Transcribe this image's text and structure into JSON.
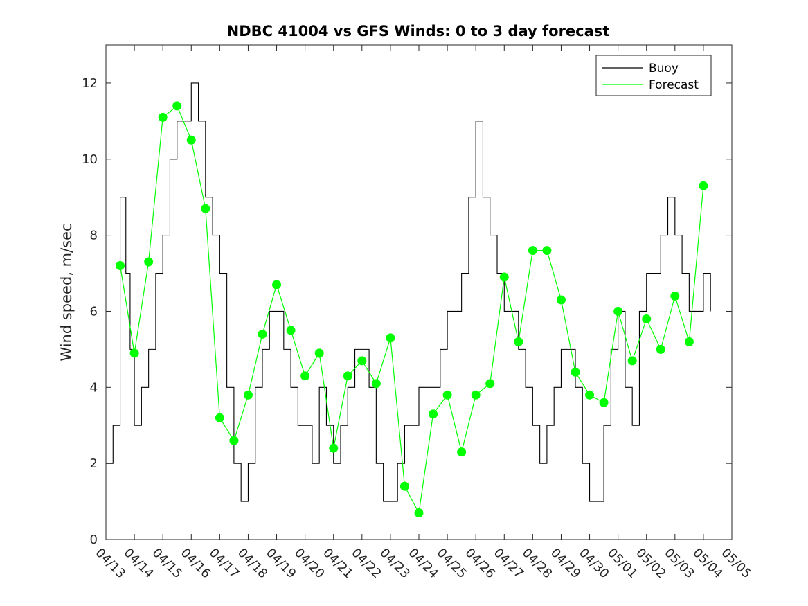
{
  "chart_data": {
    "type": "line",
    "title": "NDBC 41004 vs GFS Winds: 0 to 3 day forecast",
    "xlabel": "",
    "ylabel": "Wind speed, m/sec",
    "x_tick_labels": [
      "04/13",
      "04/14",
      "04/15",
      "04/16",
      "04/17",
      "04/18",
      "04/19",
      "04/20",
      "04/21",
      "04/22",
      "04/23",
      "04/24",
      "04/25",
      "04/26",
      "04/27",
      "04/28",
      "04/29",
      "04/30",
      "05/01",
      "05/02",
      "05/03",
      "05/04",
      "05/05"
    ],
    "y_tick_labels": [
      "0",
      "2",
      "4",
      "6",
      "8",
      "10",
      "12"
    ],
    "xlim_days": [
      0,
      22
    ],
    "ylim": [
      0,
      13
    ],
    "grid": false,
    "legend_position": "top-right",
    "colors": {
      "buoy": "#000000",
      "forecast": "#00ff00",
      "markers": "#00ff00"
    },
    "series": [
      {
        "name": "Buoy",
        "x": [
          0,
          0.25,
          0.5,
          0.7,
          0.85,
          1.0,
          1.25,
          1.5,
          1.75,
          2.0,
          2.25,
          2.5,
          2.75,
          3.0,
          3.25,
          3.5,
          3.75,
          4.0,
          4.25,
          4.5,
          4.75,
          5.0,
          5.25,
          5.5,
          5.75,
          6.0,
          6.25,
          6.5,
          6.75,
          7.0,
          7.25,
          7.5,
          7.75,
          8.0,
          8.25,
          8.5,
          8.75,
          9.0,
          9.25,
          9.5,
          9.75,
          10.0,
          10.25,
          10.5,
          10.75,
          11.0,
          11.25,
          11.5,
          11.75,
          12.0,
          12.25,
          12.5,
          12.75,
          13.0,
          13.25,
          13.5,
          13.75,
          14.0,
          14.25,
          14.5,
          14.75,
          15.0,
          15.25,
          15.5,
          15.75,
          16.0,
          16.25,
          16.5,
          16.75,
          17.0,
          17.25,
          17.5,
          17.75,
          18.0,
          18.25,
          18.5,
          18.75,
          19.0,
          19.25,
          19.5,
          19.75,
          20.0,
          20.25,
          20.5,
          20.75,
          21.0,
          21.25
        ],
        "values": [
          2,
          3,
          9,
          7,
          5,
          3,
          4,
          5,
          7,
          8,
          10,
          11,
          11,
          12,
          11,
          9,
          8,
          7,
          4,
          2,
          1,
          2,
          4,
          5,
          6,
          6,
          5,
          4,
          3,
          3,
          2,
          4,
          3,
          2,
          3,
          4,
          5,
          5,
          4,
          2,
          1,
          1,
          2,
          3,
          3,
          4,
          4,
          4,
          5,
          6,
          6,
          7,
          9,
          11,
          9,
          8,
          7,
          6,
          6,
          5,
          4,
          3,
          2,
          3,
          4,
          5,
          5,
          4,
          2,
          1,
          1,
          3,
          5,
          6,
          4,
          3,
          6,
          7,
          7,
          8,
          9,
          8,
          7,
          6,
          6,
          7,
          6
        ]
      },
      {
        "name": "Forecast",
        "x": [
          0.5,
          1.0,
          1.5,
          2.0,
          2.5,
          3.0,
          3.5,
          4.0,
          4.5,
          5.0,
          5.5,
          6.0,
          6.5,
          7.0,
          7.5,
          8.0,
          8.5,
          9.0,
          9.5,
          10.0,
          10.5,
          11.0,
          11.5,
          12.0,
          12.5,
          13.0,
          13.5,
          14.0,
          14.5,
          15.0,
          15.5,
          16.0,
          16.5,
          17.0,
          17.5,
          18.0,
          18.5,
          19.0,
          19.5,
          20.0,
          20.5,
          21.0
        ],
        "values": [
          7.2,
          4.9,
          7.3,
          11.1,
          11.4,
          10.5,
          8.7,
          3.2,
          2.6,
          3.8,
          5.4,
          6.7,
          5.5,
          4.3,
          4.9,
          2.4,
          4.3,
          4.7,
          4.1,
          5.3,
          1.4,
          0.7,
          3.3,
          3.8,
          2.3,
          3.8,
          4.1,
          6.9,
          5.2,
          7.6,
          7.6,
          6.3,
          4.4,
          3.8,
          3.6,
          6.0,
          4.7,
          5.8,
          5.0,
          6.4,
          5.2,
          9.3
        ]
      }
    ],
    "forecast_points": {
      "x": [
        0.5,
        1.0,
        1.5,
        2.0,
        2.5,
        3.0,
        3.5,
        4.0,
        4.5,
        5.0,
        5.5,
        6.0,
        6.5,
        7.0,
        7.5,
        8.0,
        8.5,
        9.0,
        9.5,
        10.0,
        10.5,
        11.0,
        11.5,
        12.0,
        12.5,
        13.0,
        13.5,
        14.0,
        14.5,
        15.0,
        15.5,
        16.0,
        16.5,
        17.0,
        17.5,
        18.0,
        18.5,
        19.0,
        19.5,
        20.0,
        20.5,
        21.0
      ],
      "values": [
        7.2,
        4.9,
        7.3,
        11.1,
        11.4,
        10.5,
        8.7,
        3.2,
        2.6,
        3.8,
        5.4,
        6.7,
        5.5,
        4.3,
        4.9,
        2.4,
        4.3,
        4.7,
        4.1,
        5.3,
        1.4,
        0.7,
        3.3,
        3.8,
        2.3,
        3.8,
        4.1,
        6.9,
        5.2,
        7.6,
        7.6,
        6.3,
        4.4,
        3.8,
        3.6,
        6.0,
        4.7,
        5.8,
        5.0,
        6.4,
        5.2,
        9.3
      ]
    }
  }
}
